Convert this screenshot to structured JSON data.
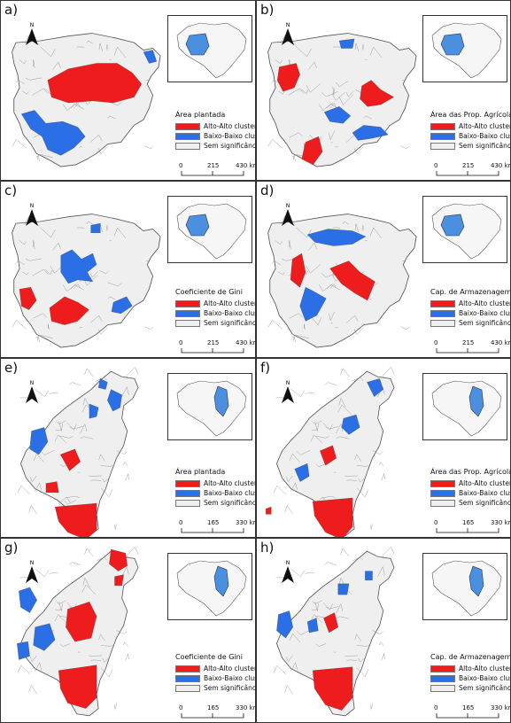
{
  "colors": {
    "alto": "#ee1c1c",
    "baixo": "#2a6fe6",
    "sem": "#efefef",
    "border": "#8a8a8a",
    "inset_fill": "#4b8fe0"
  },
  "north_label": "N",
  "legend_items": {
    "alto": "Alto-Alto cluster",
    "baixo": "Baixo-Baixo cluster",
    "sem": "Sem significância"
  },
  "panels": [
    {
      "label": "a)",
      "title": "Área plantada",
      "region": "mt",
      "scale_ticks": [
        "0",
        "215",
        "430 km"
      ]
    },
    {
      "label": "b)",
      "title": "Área das Prop. Agrícolas",
      "region": "mt",
      "scale_ticks": [
        "0",
        "215",
        "430 km"
      ]
    },
    {
      "label": "c)",
      "title": "Coeficiente de Gini",
      "region": "mt",
      "scale_ticks": [
        "0",
        "215",
        "430 km"
      ]
    },
    {
      "label": "d)",
      "title": "Cap. de Armazenagem",
      "region": "mt",
      "scale_ticks": [
        "0",
        "215",
        "430 km"
      ]
    },
    {
      "label": "e)",
      "title": "Área plantada",
      "region": "matopiba",
      "scale_ticks": [
        "0",
        "165",
        "330 km"
      ]
    },
    {
      "label": "f)",
      "title": "Área das Prop. Agrícolas",
      "region": "matopiba",
      "scale_ticks": [
        "0",
        "165",
        "330 km"
      ]
    },
    {
      "label": "g)",
      "title": "Coeficiente de Gini",
      "region": "matopiba",
      "scale_ticks": [
        "0",
        "165",
        "330 km"
      ]
    },
    {
      "label": "h)",
      "title": "Cap. de Armazenagem",
      "region": "matopiba",
      "scale_ticks": [
        "0",
        "165",
        "330 km"
      ]
    }
  ]
}
